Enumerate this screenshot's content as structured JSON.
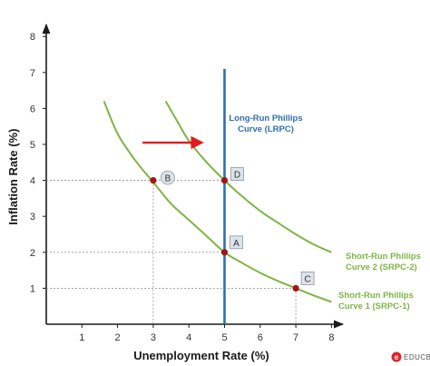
{
  "chart_data": {
    "type": "line",
    "xlabel": "Unemployment Rate (%)",
    "ylabel": "Inflation Rate (%)",
    "xlim": [
      0,
      8.3
    ],
    "ylim": [
      0,
      8.3
    ],
    "x_ticks": [
      1,
      2,
      3,
      4,
      5,
      6,
      7,
      8
    ],
    "y_ticks": [
      1,
      2,
      3,
      4,
      5,
      6,
      7,
      8
    ],
    "grid": false,
    "series": [
      {
        "name": "Short-Run Phillips Curve 1 (SRPC-1)",
        "label_lines": [
          "Short-Run Phillips",
          "Curve 1 (SRPC-1)"
        ],
        "color": "#7db544",
        "x": [
          1.62,
          2.0,
          2.5,
          3.0,
          3.5,
          4.0,
          4.5,
          5.0,
          5.5,
          6.0,
          6.5,
          7.0,
          7.5,
          8.0
        ],
        "y": [
          6.2,
          5.3,
          4.55,
          3.95,
          3.35,
          2.9,
          2.45,
          2.0,
          1.7,
          1.43,
          1.2,
          1.0,
          0.8,
          0.62
        ]
      },
      {
        "name": "Short-Run Phillips Curve 2 (SRPC-2)",
        "label_lines": [
          "Short-Run Phillips",
          "Curve 2 (SRPC-2)"
        ],
        "color": "#7db544",
        "x": [
          3.35,
          3.7,
          4.0,
          4.5,
          5.0,
          5.5,
          6.0,
          6.5,
          7.0,
          7.5,
          8.0
        ],
        "y": [
          6.2,
          5.6,
          5.1,
          4.5,
          4.0,
          3.55,
          3.15,
          2.82,
          2.5,
          2.22,
          2.0
        ]
      },
      {
        "name": "Long-Run Phillips Curve (LRPC)",
        "label_lines": [
          "Long-Run Phillips",
          "Curve (LRPC)"
        ],
        "color": "#2e6fb0",
        "x": [
          5,
          5
        ],
        "y": [
          0,
          7.1
        ]
      }
    ],
    "points": [
      {
        "label": "A",
        "x": 5,
        "y": 2
      },
      {
        "label": "B",
        "x": 3,
        "y": 4
      },
      {
        "label": "C",
        "x": 7,
        "y": 1
      },
      {
        "label": "D",
        "x": 5,
        "y": 4
      }
    ],
    "shift_arrow": {
      "from": [
        2.7,
        5.05
      ],
      "to": [
        4.35,
        5.05
      ],
      "color": "#e11b1b"
    },
    "annotation_colors": {
      "srpc": "#7db544",
      "lrpc": "#2e6fb0",
      "point": "#a31515"
    }
  },
  "brand": {
    "logo_letter": "e",
    "name": "EDUCBA"
  }
}
